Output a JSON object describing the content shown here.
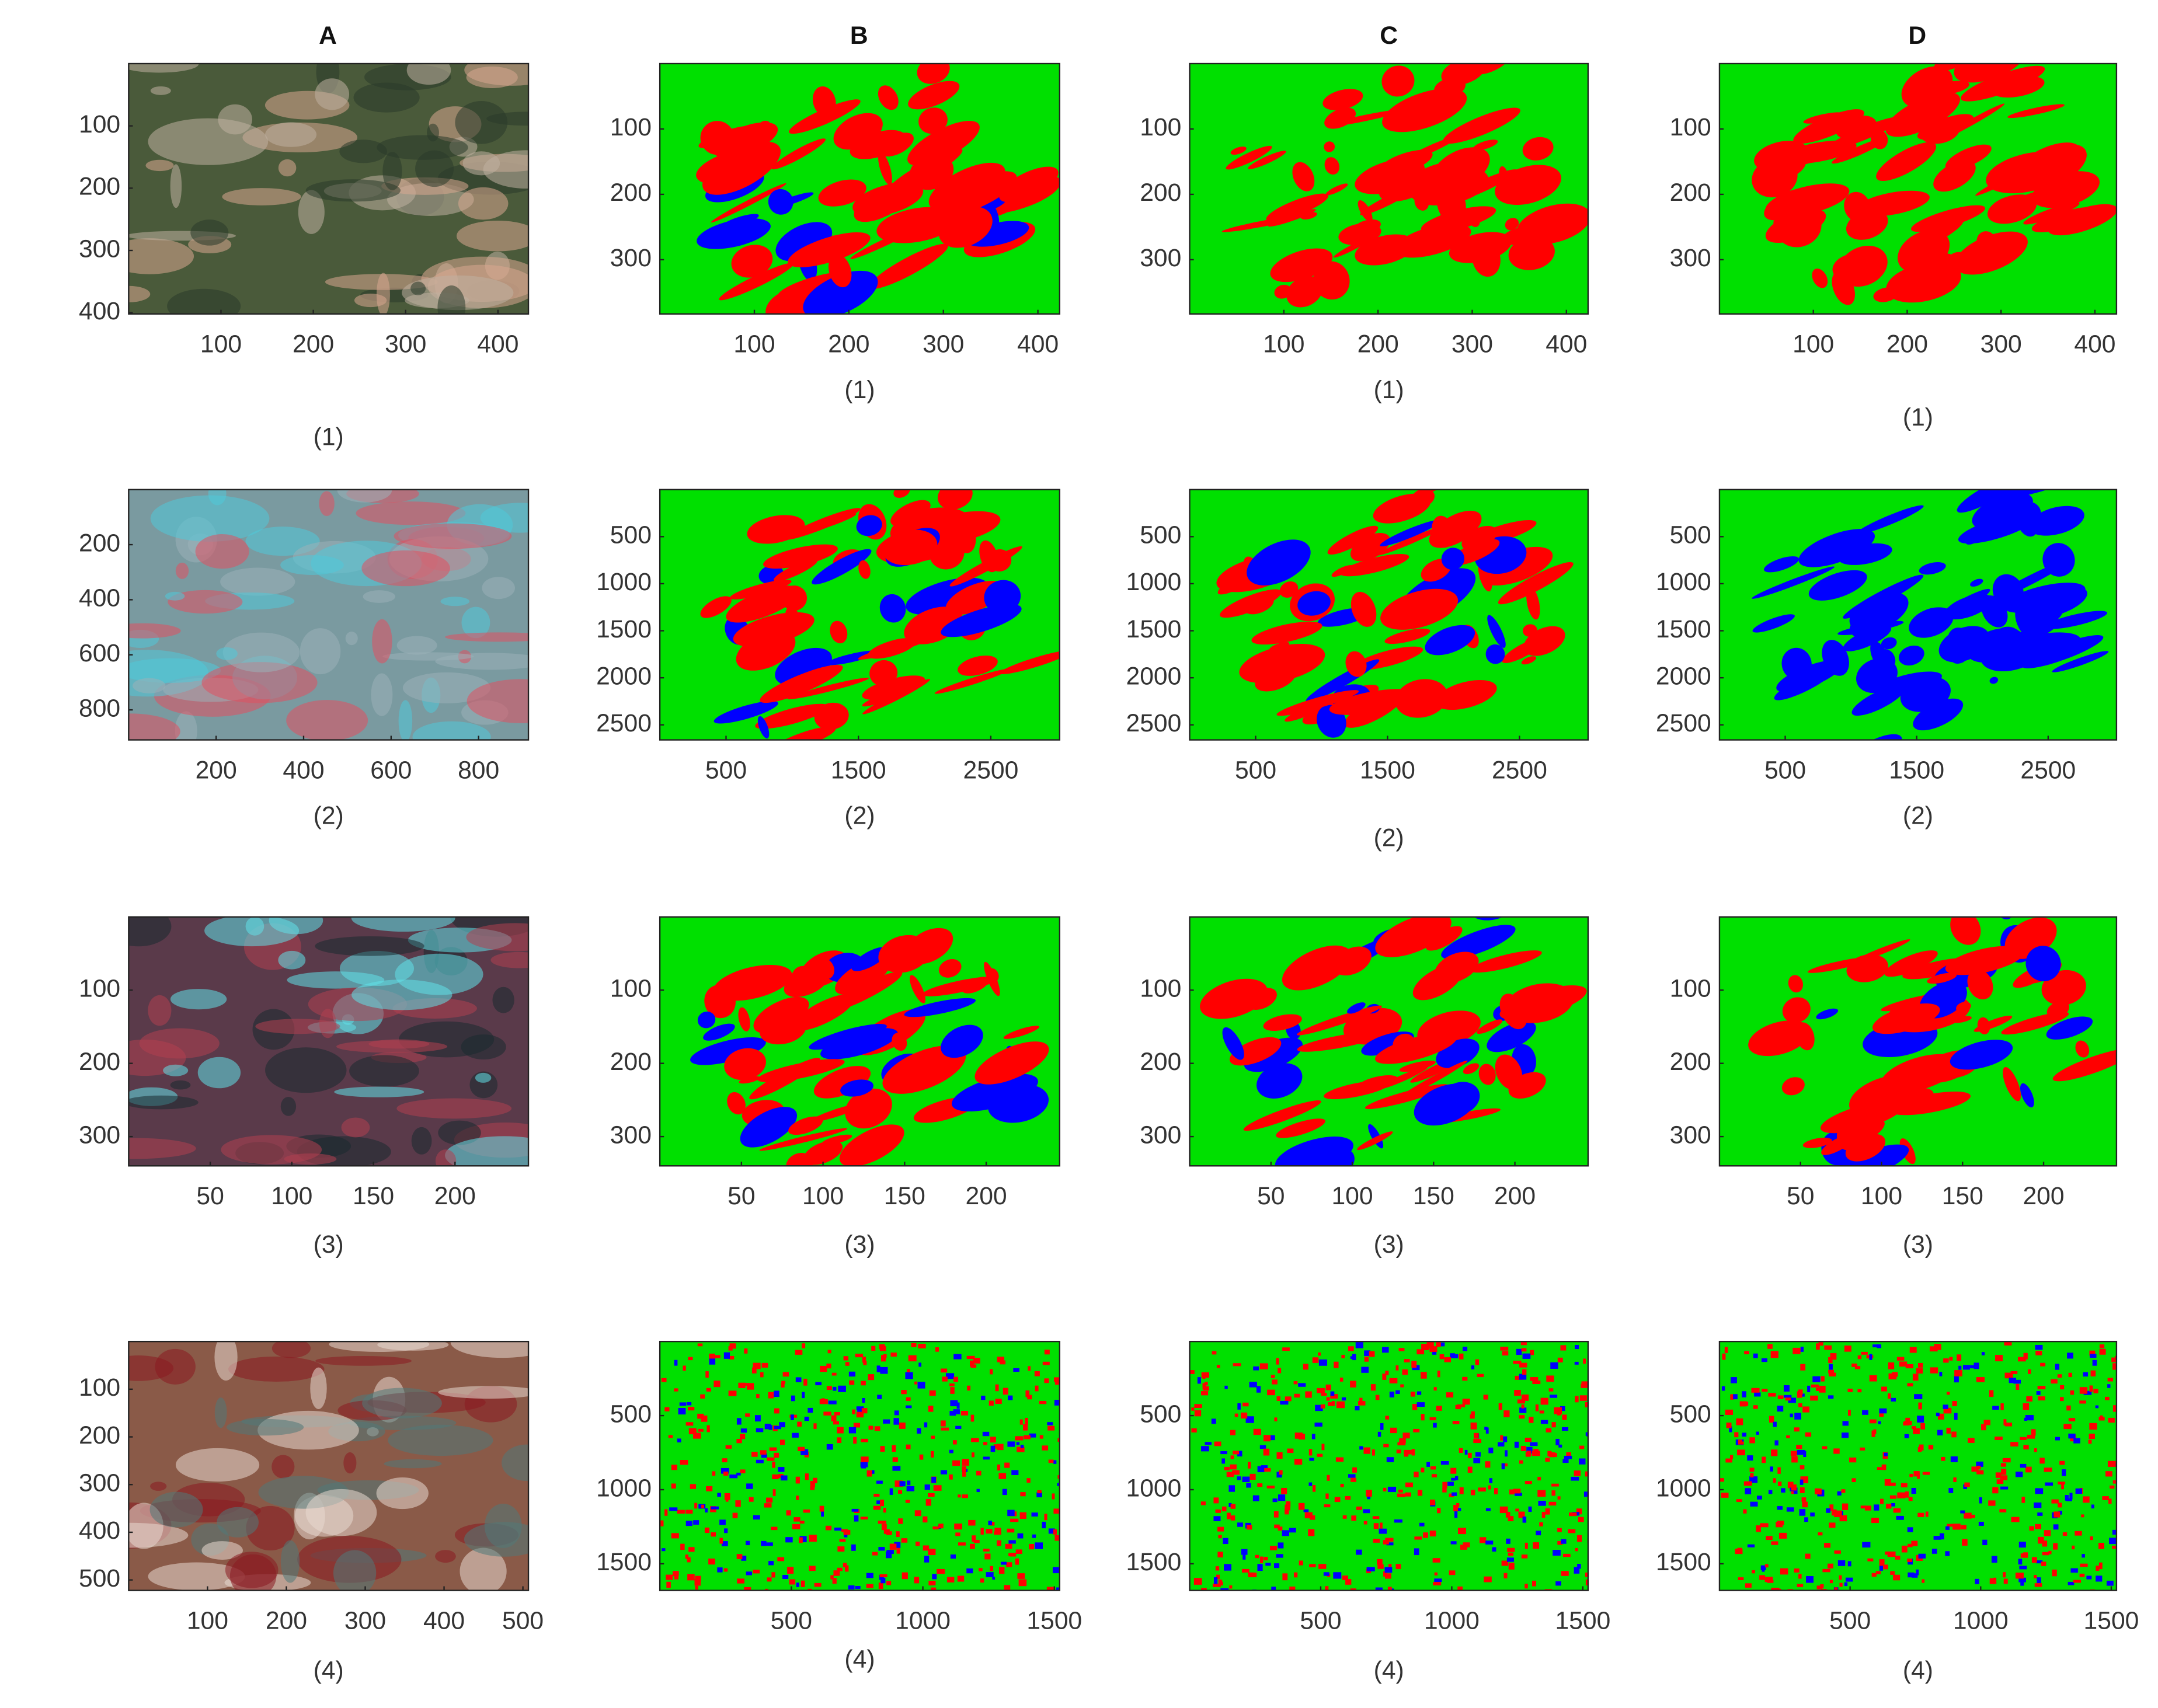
{
  "column_headers": [
    "A",
    "B",
    "C",
    "D"
  ],
  "rows": [
    {
      "panels": [
        {
          "label": "(1)",
          "xlim": [
            0,
            433
          ],
          "ylim": [
            0,
            402
          ],
          "xticks": [
            100,
            200,
            300,
            400
          ],
          "yticks": [
            100,
            200,
            300,
            400
          ]
        },
        {
          "label": "(1)",
          "xlim": [
            0,
            423
          ],
          "ylim": [
            0,
            383
          ],
          "xticks": [
            100,
            200,
            300,
            400
          ],
          "yticks": [
            100,
            200,
            300
          ]
        },
        {
          "label": "(1)",
          "xlim": [
            0,
            423
          ],
          "ylim": [
            0,
            383
          ],
          "xticks": [
            100,
            200,
            300,
            400
          ],
          "yticks": [
            100,
            200,
            300
          ]
        },
        {
          "label": "(1)",
          "xlim": [
            0,
            423
          ],
          "ylim": [
            0,
            383
          ],
          "xticks": [
            100,
            200,
            300,
            400
          ],
          "yticks": [
            100,
            200,
            300
          ]
        }
      ]
    },
    {
      "panels": [
        {
          "label": "(2)",
          "xlim": [
            0,
            914
          ],
          "ylim": [
            0,
            909
          ],
          "xticks": [
            200,
            400,
            600,
            800
          ],
          "yticks": [
            200,
            400,
            600,
            800
          ]
        },
        {
          "label": "(2)",
          "xlim": [
            0,
            3020
          ],
          "ylim": [
            0,
            2660
          ],
          "xticks": [
            500,
            1500,
            2500
          ],
          "yticks": [
            500,
            1000,
            1500,
            2000,
            2500
          ]
        },
        {
          "label": "(2)",
          "xlim": [
            0,
            3020
          ],
          "ylim": [
            0,
            2660
          ],
          "xticks": [
            500,
            1500,
            2500
          ],
          "yticks": [
            500,
            1000,
            1500,
            2000,
            2500
          ]
        },
        {
          "label": "(2)",
          "xlim": [
            0,
            3020
          ],
          "ylim": [
            0,
            2660
          ],
          "xticks": [
            500,
            1500,
            2500
          ],
          "yticks": [
            500,
            1000,
            1500,
            2000,
            2500
          ]
        }
      ]
    },
    {
      "panels": [
        {
          "label": "(3)",
          "xlim": [
            0,
            245
          ],
          "ylim": [
            0,
            340
          ],
          "xticks": [
            50,
            100,
            150,
            200
          ],
          "yticks": [
            100,
            200,
            300
          ]
        },
        {
          "label": "(3)",
          "xlim": [
            0,
            245
          ],
          "ylim": [
            0,
            340
          ],
          "xticks": [
            50,
            100,
            150,
            200
          ],
          "yticks": [
            100,
            200,
            300
          ]
        },
        {
          "label": "(3)",
          "xlim": [
            0,
            245
          ],
          "ylim": [
            0,
            340
          ],
          "xticks": [
            50,
            100,
            150,
            200
          ],
          "yticks": [
            100,
            200,
            300
          ]
        },
        {
          "label": "(3)",
          "xlim": [
            0,
            245
          ],
          "ylim": [
            0,
            340
          ],
          "xticks": [
            50,
            100,
            150,
            200
          ],
          "yticks": [
            100,
            200,
            300
          ]
        }
      ]
    },
    {
      "panels": [
        {
          "label": "(4)",
          "xlim": [
            0,
            507
          ],
          "ylim": [
            0,
            522
          ],
          "xticks": [
            100,
            200,
            300,
            400,
            500
          ],
          "yticks": [
            100,
            200,
            300,
            400,
            500
          ]
        },
        {
          "label": "(4)",
          "xlim": [
            0,
            1520
          ],
          "ylim": [
            0,
            1680
          ],
          "xticks": [
            500,
            1000,
            1500
          ],
          "yticks": [
            500,
            1000,
            1500
          ]
        },
        {
          "label": "(4)",
          "xlim": [
            0,
            1520
          ],
          "ylim": [
            0,
            1680
          ],
          "xticks": [
            500,
            1000,
            1500
          ],
          "yticks": [
            500,
            1000,
            1500
          ]
        },
        {
          "label": "(4)",
          "xlim": [
            0,
            1520
          ],
          "ylim": [
            0,
            1680
          ],
          "xticks": [
            500,
            1000,
            1500
          ],
          "yticks": [
            500,
            1000,
            1500
          ]
        }
      ]
    }
  ]
}
